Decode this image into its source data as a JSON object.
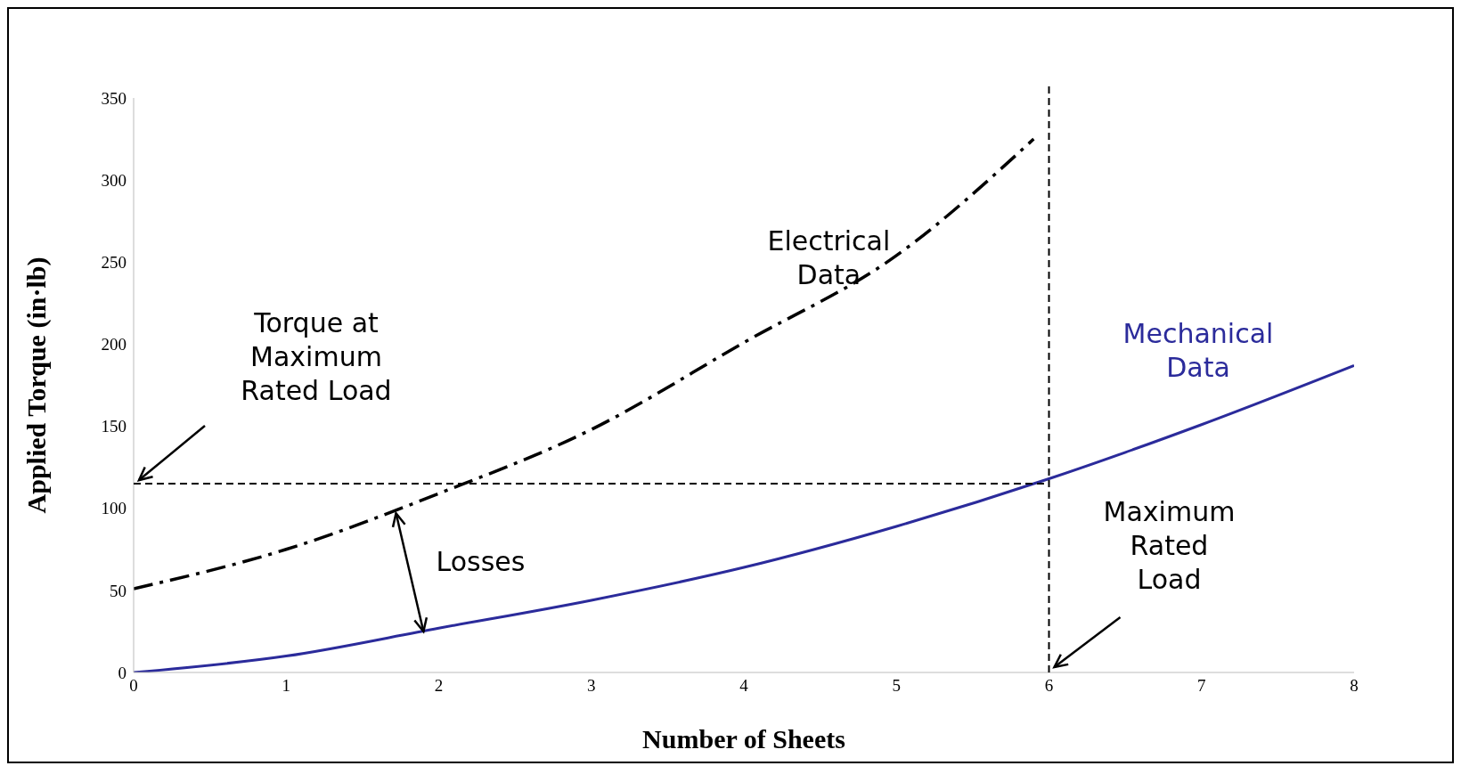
{
  "chart_data": {
    "type": "line",
    "xlabel": "Number of Sheets",
    "ylabel": "Applied Torque (in·lb)",
    "xlim": [
      0,
      8
    ],
    "xticks": [
      0,
      1,
      2,
      3,
      4,
      5,
      6,
      7,
      8
    ],
    "ylim": [
      0,
      350
    ],
    "yticks": [
      0,
      50,
      100,
      150,
      200,
      250,
      300,
      350
    ],
    "marker": "none",
    "series": [
      {
        "name": "Electrical Data",
        "color": "#000000",
        "line_style": "dashed",
        "x": [
          0,
          1,
          2,
          3,
          4,
          5,
          5.9
        ],
        "values": [
          51,
          75,
          109,
          148,
          201,
          254,
          325
        ]
      },
      {
        "name": "Mechanical Data",
        "color": "#2b2b9b",
        "line_style": "solid",
        "x": [
          0,
          1,
          2,
          3,
          4,
          5,
          6,
          7,
          8
        ],
        "values": [
          0,
          10,
          27,
          44,
          64,
          89,
          118,
          151,
          187
        ]
      }
    ],
    "ref_lines": [
      {
        "axis": "y",
        "value": 115,
        "line_style": "dashed",
        "color": "#000000"
      },
      {
        "axis": "x",
        "value": 6,
        "line_style": "dashed",
        "color": "#000000"
      }
    ],
    "annotations": [
      "Torque at Maximum Rated Load",
      "Maximum Rated Load",
      "Losses"
    ]
  }
}
